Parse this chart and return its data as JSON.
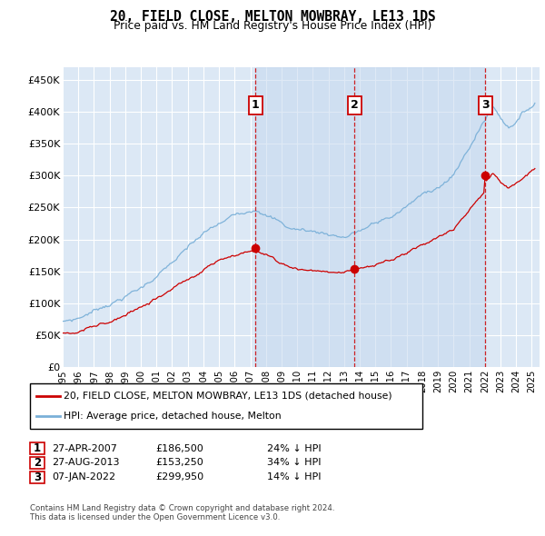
{
  "title": "20, FIELD CLOSE, MELTON MOWBRAY, LE13 1DS",
  "subtitle": "Price paid vs. HM Land Registry's House Price Index (HPI)",
  "ylim": [
    0,
    470000
  ],
  "yticks": [
    0,
    50000,
    100000,
    150000,
    200000,
    250000,
    300000,
    350000,
    400000,
    450000
  ],
  "ytick_labels": [
    "£0",
    "£50K",
    "£100K",
    "£150K",
    "£200K",
    "£250K",
    "£300K",
    "£350K",
    "£400K",
    "£450K"
  ],
  "hpi_color": "#7ab0d8",
  "price_color": "#cc0000",
  "vline_color": "#cc0000",
  "background_color": "#dce8f5",
  "shade_color": "#c5d8ee",
  "grid_color": "#ffffff",
  "sales": [
    {
      "date_num": 2007.32,
      "price": 186500,
      "label": "1"
    },
    {
      "date_num": 2013.65,
      "price": 153250,
      "label": "2"
    },
    {
      "date_num": 2022.02,
      "price": 299950,
      "label": "3"
    }
  ],
  "legend_entries": [
    "20, FIELD CLOSE, MELTON MOWBRAY, LE13 1DS (detached house)",
    "HPI: Average price, detached house, Melton"
  ],
  "table_rows": [
    {
      "num": "1",
      "date": "27-APR-2007",
      "price": "£186,500",
      "hpi": "24% ↓ HPI"
    },
    {
      "num": "2",
      "date": "27-AUG-2013",
      "price": "£153,250",
      "hpi": "34% ↓ HPI"
    },
    {
      "num": "3",
      "date": "07-JAN-2022",
      "price": "£299,950",
      "hpi": "14% ↓ HPI"
    }
  ],
  "footer": "Contains HM Land Registry data © Crown copyright and database right 2024.\nThis data is licensed under the Open Government Licence v3.0.",
  "xlim_start": 1995.0,
  "xlim_end": 2025.5,
  "marker_box_color": "#cc0000"
}
